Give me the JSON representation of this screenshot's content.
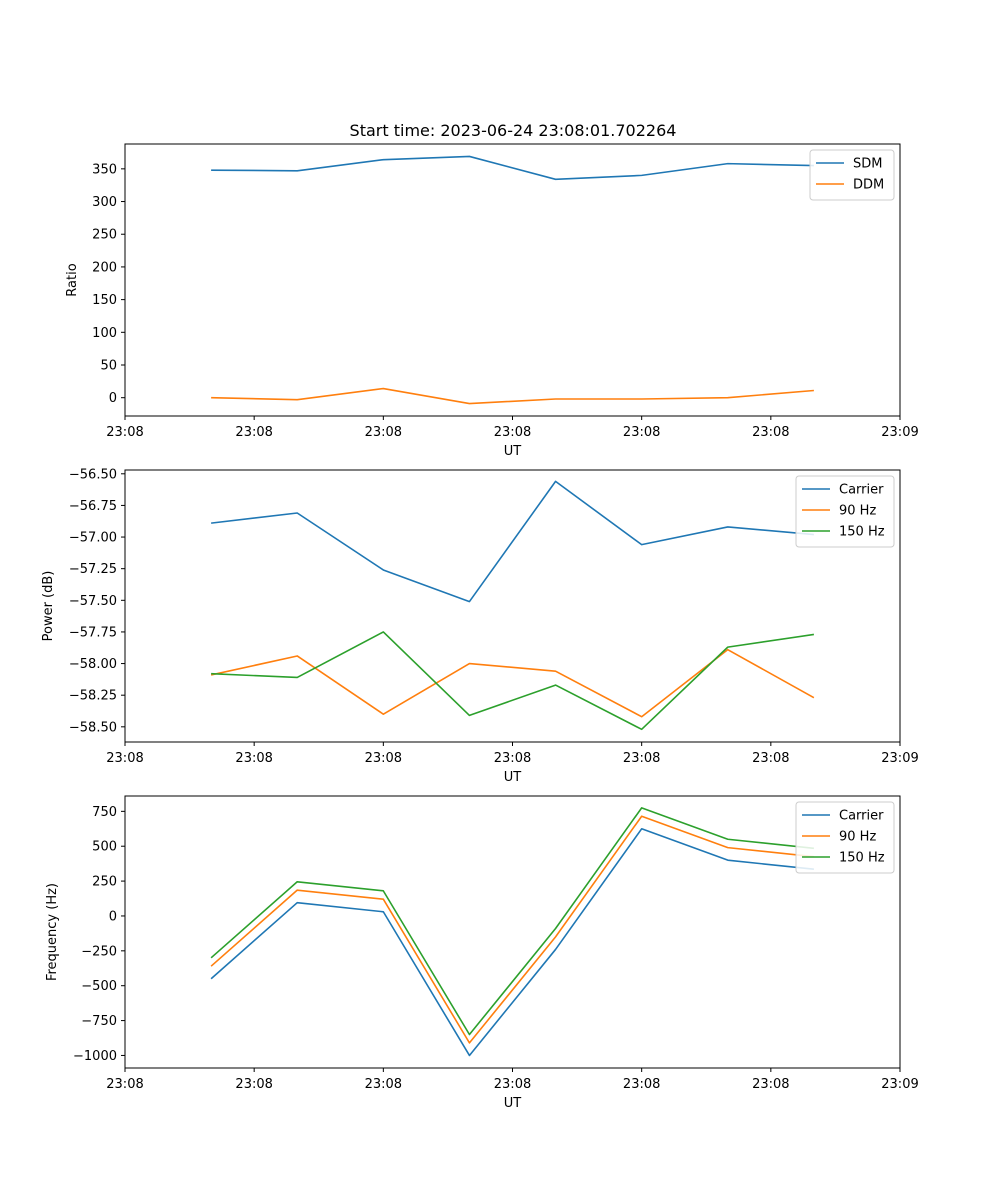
{
  "figure_title": "Start time: 2023-06-24 23:08:01.702264",
  "colors": {
    "blue": "#1f77b4",
    "orange": "#ff7f0e",
    "green": "#2ca02c"
  },
  "chart_data": [
    {
      "type": "line",
      "title": "Start time: 2023-06-24 23:08:01.702264",
      "xlabel": "UT",
      "ylabel": "Ratio",
      "x": [
        1,
        2,
        3,
        4,
        5,
        6,
        7,
        8
      ],
      "xlim": [
        0,
        9
      ],
      "x_ticks": [
        0,
        1.5,
        3,
        4.5,
        6,
        7.5,
        9
      ],
      "x_tick_labels": [
        "23:08",
        "23:08",
        "23:08",
        "23:08",
        "23:08",
        "23:08",
        "23:09"
      ],
      "ylim": [
        -28,
        388
      ],
      "y_ticks": [
        0,
        50,
        100,
        150,
        200,
        250,
        300,
        350
      ],
      "y_tick_labels": [
        "0",
        "50",
        "100",
        "150",
        "200",
        "250",
        "300",
        "350"
      ],
      "legend_position": "top-right",
      "grid": false,
      "series": [
        {
          "name": "SDM",
          "color": "#1f77b4",
          "values": [
            348,
            347,
            364,
            369,
            334,
            340,
            358,
            355
          ]
        },
        {
          "name": "DDM",
          "color": "#ff7f0e",
          "values": [
            0,
            -3,
            14,
            -9,
            -2,
            -2,
            0,
            11
          ]
        }
      ]
    },
    {
      "type": "line",
      "title": "",
      "xlabel": "UT",
      "ylabel": "Power (dB)",
      "x": [
        1,
        2,
        3,
        4,
        5,
        6,
        7,
        8
      ],
      "xlim": [
        0,
        9
      ],
      "x_ticks": [
        0,
        1.5,
        3,
        4.5,
        6,
        7.5,
        9
      ],
      "x_tick_labels": [
        "23:08",
        "23:08",
        "23:08",
        "23:08",
        "23:08",
        "23:08",
        "23:09"
      ],
      "ylim": [
        -58.62,
        -56.47
      ],
      "y_ticks": [
        -58.5,
        -58.25,
        -58.0,
        -57.75,
        -57.5,
        -57.25,
        -57.0,
        -56.75,
        -56.5
      ],
      "y_tick_labels": [
        "−58.50",
        "−58.25",
        "−58.00",
        "−57.75",
        "−57.50",
        "−57.25",
        "−57.00",
        "−56.75",
        "−56.50"
      ],
      "legend_position": "top-right",
      "grid": false,
      "series": [
        {
          "name": "Carrier",
          "color": "#1f77b4",
          "values": [
            -56.89,
            -56.81,
            -57.26,
            -57.51,
            -56.56,
            -57.06,
            -56.92,
            -56.98
          ]
        },
        {
          "name": "90 Hz",
          "color": "#ff7f0e",
          "values": [
            -58.09,
            -57.94,
            -58.4,
            -58.0,
            -58.06,
            -58.42,
            -57.89,
            -58.27
          ]
        },
        {
          "name": "150 Hz",
          "color": "#2ca02c",
          "values": [
            -58.08,
            -58.11,
            -57.75,
            -58.41,
            -58.17,
            -58.52,
            -57.87,
            -57.77
          ]
        }
      ]
    },
    {
      "type": "line",
      "title": "",
      "xlabel": "UT",
      "ylabel": "Frequency (Hz)",
      "x": [
        1,
        2,
        3,
        4,
        5,
        6,
        7,
        8
      ],
      "xlim": [
        0,
        9
      ],
      "x_ticks": [
        0,
        1.5,
        3,
        4.5,
        6,
        7.5,
        9
      ],
      "x_tick_labels": [
        "23:08",
        "23:08",
        "23:08",
        "23:08",
        "23:08",
        "23:08",
        "23:09"
      ],
      "ylim": [
        -1090,
        860
      ],
      "y_ticks": [
        -1000,
        -750,
        -500,
        -250,
        0,
        250,
        500,
        750
      ],
      "y_tick_labels": [
        "−1000",
        "−750",
        "−500",
        "−250",
        "0",
        "250",
        "500",
        "750"
      ],
      "legend_position": "top-right",
      "grid": false,
      "series": [
        {
          "name": "Carrier",
          "color": "#1f77b4",
          "values": [
            -450,
            95,
            30,
            -1000,
            -240,
            625,
            400,
            335
          ]
        },
        {
          "name": "90 Hz",
          "color": "#ff7f0e",
          "values": [
            -360,
            185,
            120,
            -910,
            -150,
            715,
            490,
            425
          ]
        },
        {
          "name": "150 Hz",
          "color": "#2ca02c",
          "values": [
            -300,
            245,
            180,
            -850,
            -90,
            775,
            550,
            485
          ]
        }
      ]
    }
  ]
}
